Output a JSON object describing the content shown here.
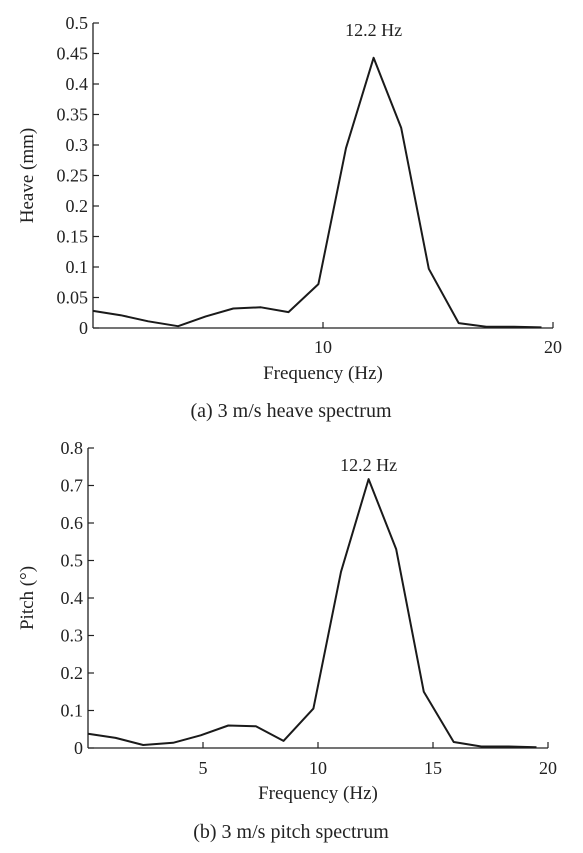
{
  "chart_data": [
    {
      "type": "line",
      "xlabel": "Frequency (Hz)",
      "ylabel": "Heave (mm)",
      "caption": "(a) 3 m/s heave spectrum",
      "xlim": [
        0,
        20
      ],
      "ylim": [
        0,
        0.5
      ],
      "xticks": [
        10,
        20
      ],
      "xtick_labels": [
        "10",
        "20"
      ],
      "yticks": [
        0,
        0.05,
        0.1,
        0.15,
        0.2,
        0.25,
        0.3,
        0.35,
        0.4,
        0.45,
        0.5
      ],
      "ytick_labels": [
        "0",
        "0.05",
        "0.1",
        "0.15",
        "0.2",
        "0.25",
        "0.3",
        "0.35",
        "0.4",
        "0.45",
        "0.5"
      ],
      "grid": false,
      "line_color": "#1a1a1a",
      "series": [
        {
          "x": [
            0,
            1.2,
            2.4,
            3.7,
            4.9,
            6.1,
            7.3,
            8.5,
            9.8,
            11.0,
            12.2,
            13.4,
            14.6,
            15.9,
            17.1,
            18.3,
            19.5
          ],
          "y": [
            0.028,
            0.021,
            0.011,
            0.003,
            0.019,
            0.032,
            0.034,
            0.026,
            0.072,
            0.295,
            0.443,
            0.328,
            0.097,
            0.008,
            0.002,
            0.002,
            0.001
          ]
        }
      ],
      "annotations": [
        {
          "text": "12.2 Hz",
          "x": 12.2,
          "y": 0.443
        }
      ]
    },
    {
      "type": "line",
      "xlabel": "Frequency (Hz)",
      "ylabel": "Pitch (°)",
      "caption": "(b) 3 m/s pitch spectrum",
      "xlim": [
        0,
        20
      ],
      "ylim": [
        0,
        0.8
      ],
      "xticks": [
        5,
        10,
        15,
        20
      ],
      "xtick_labels": [
        "5",
        "10",
        "15",
        "20"
      ],
      "yticks": [
        0,
        0.1,
        0.2,
        0.3,
        0.4,
        0.5,
        0.6,
        0.7,
        0.8
      ],
      "ytick_labels": [
        "0",
        "0.1",
        "0.2",
        "0.3",
        "0.4",
        "0.5",
        "0.6",
        "0.7",
        "0.8"
      ],
      "grid": false,
      "line_color": "#1a1a1a",
      "series": [
        {
          "x": [
            0,
            1.2,
            2.4,
            3.7,
            4.9,
            6.1,
            7.3,
            8.5,
            9.8,
            11.0,
            12.2,
            13.4,
            14.6,
            15.9,
            17.1,
            18.3,
            19.5
          ],
          "y": [
            0.038,
            0.027,
            0.008,
            0.014,
            0.034,
            0.06,
            0.058,
            0.019,
            0.105,
            0.47,
            0.717,
            0.53,
            0.15,
            0.016,
            0.004,
            0.004,
            0.002
          ]
        }
      ],
      "annotations": [
        {
          "text": "12.2 Hz",
          "x": 12.2,
          "y": 0.717
        }
      ]
    }
  ]
}
